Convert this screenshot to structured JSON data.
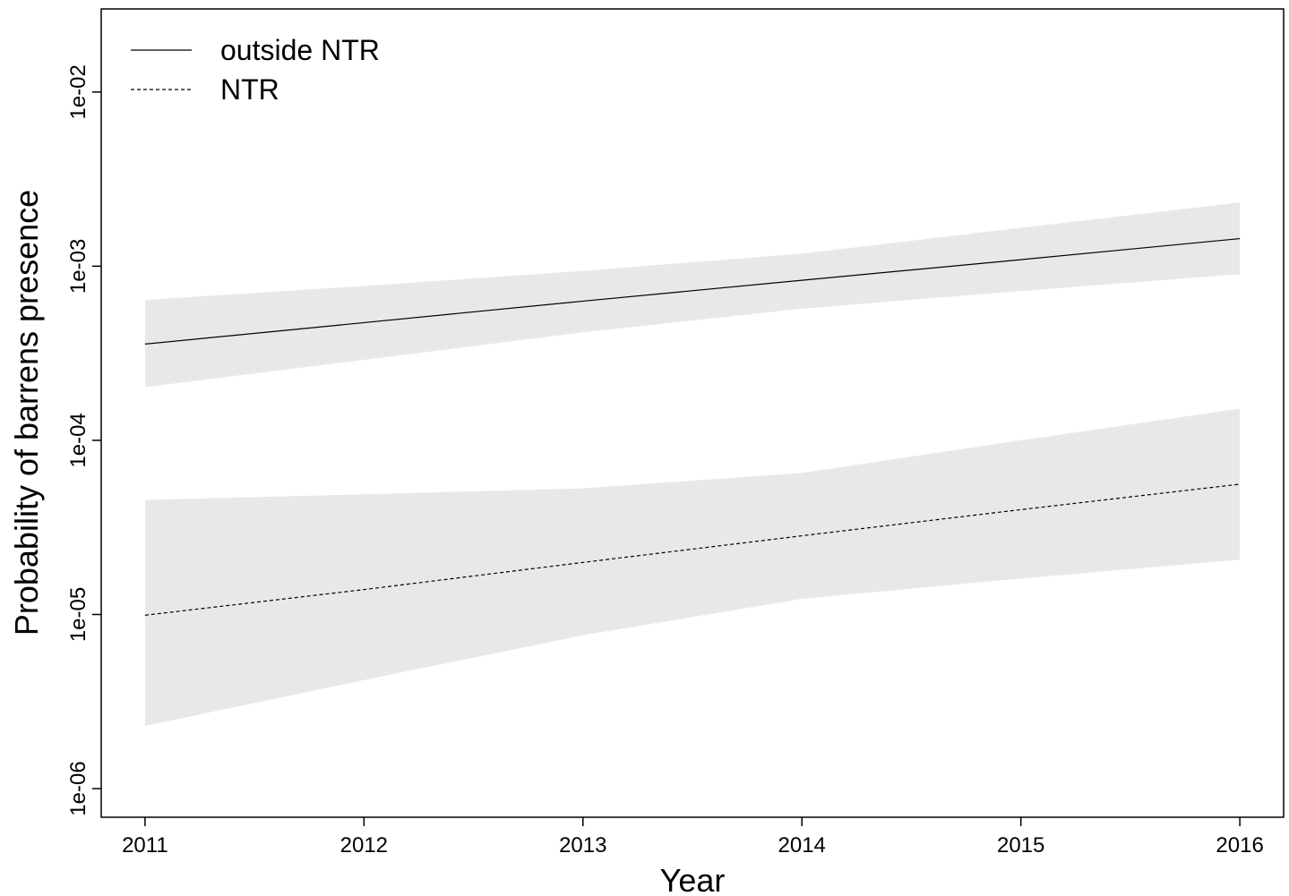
{
  "chart_data": {
    "type": "line",
    "x_label": "Year",
    "y_label": "Probability of barrens presence",
    "log_y": true,
    "legend": "top-left",
    "band_color": "#e8e8e8",
    "x": [
      2011,
      2012,
      2013,
      2014,
      2015,
      2016
    ],
    "xlim": [
      2010.8,
      2016.2
    ],
    "xticks": [
      2011,
      2012,
      2013,
      2014,
      2015,
      2016
    ],
    "ylim": [
      6.85e-07,
      0.03
    ],
    "yticks": [
      {
        "value": 1e-06,
        "label": "1e-06"
      },
      {
        "value": 1e-05,
        "label": "1e-05"
      },
      {
        "value": 0.0001,
        "label": "1e-04"
      },
      {
        "value": 0.001,
        "label": "1e-03"
      },
      {
        "value": 0.01,
        "label": "1e-02"
      }
    ],
    "series": [
      {
        "name": "outside NTR",
        "color": "#000000",
        "dash": "solid",
        "values": [
          0.000357,
          0.000474,
          0.00063,
          0.00083,
          0.00109,
          0.00144
        ],
        "lower": [
          0.000202,
          0.00029,
          0.000417,
          0.00057,
          0.00072,
          0.0009
        ],
        "upper": [
          0.00064,
          0.00077,
          0.00094,
          0.00118,
          0.00166,
          0.00232
        ]
      },
      {
        "name": "NTR",
        "color": "#000000",
        "dash": "dashed",
        "values": [
          9.9e-06,
          1.39e-05,
          1.99e-05,
          2.83e-05,
          4e-05,
          5.6e-05
        ],
        "lower": [
          2.29e-06,
          4.2e-06,
          7.6e-06,
          1.23e-05,
          1.61e-05,
          2.06e-05
        ],
        "upper": [
          4.55e-05,
          4.9e-05,
          5.3e-05,
          6.5e-05,
          0.0001,
          0.000152
        ]
      }
    ]
  }
}
